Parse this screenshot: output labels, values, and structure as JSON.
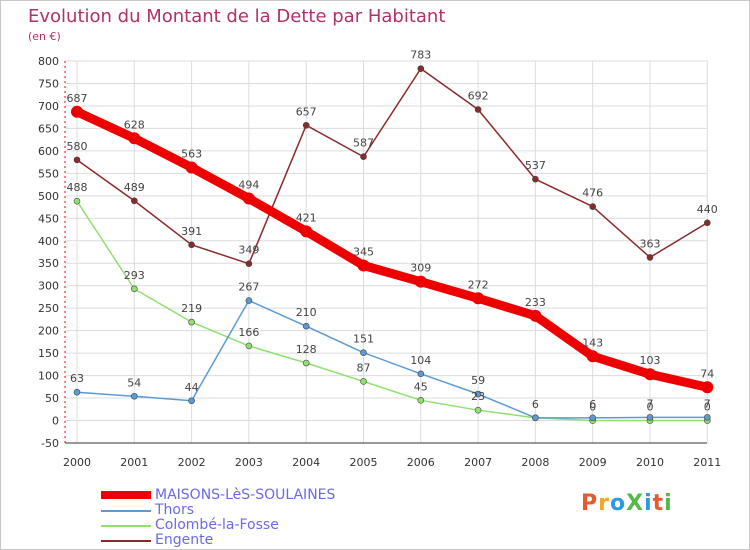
{
  "title": "Evolution du Montant de la Dette par Habitant",
  "subtitle": "(en €)",
  "logo_text": "ProXiti",
  "chart_data": {
    "type": "line",
    "title": "Evolution du Montant de la Dette par Habitant",
    "ylabel": "(en €)",
    "x": [
      "2000",
      "2001",
      "2002",
      "2003",
      "2004",
      "2005",
      "2006",
      "2007",
      "2008",
      "2009",
      "2010",
      "2011"
    ],
    "ylim": [
      -50,
      800
    ],
    "yticks": [
      -50,
      0,
      50,
      100,
      150,
      200,
      250,
      300,
      350,
      400,
      450,
      500,
      550,
      600,
      650,
      700,
      750,
      800
    ],
    "grid": true,
    "legend_position": "bottom-left",
    "series": [
      {
        "name": "MAISONS-LèS-SOULAINES",
        "color": "#ee0000",
        "width": "thick",
        "values": [
          687,
          628,
          563,
          494,
          421,
          345,
          309,
          272,
          233,
          143,
          103,
          74
        ],
        "labels": [
          "687",
          "628",
          "563",
          "494",
          "421",
          "345",
          "309",
          "272",
          "233",
          "143",
          "103",
          "74"
        ]
      },
      {
        "name": "Thors",
        "color": "#5b9bd5",
        "width": "thin",
        "values": [
          63,
          54,
          44,
          267,
          210,
          151,
          104,
          59,
          6,
          6,
          7,
          7
        ],
        "labels": [
          "63",
          "54",
          "44",
          "267",
          "210",
          "151",
          "104",
          "59",
          "6",
          "6",
          "7",
          "7"
        ]
      },
      {
        "name": "Colombé-la-Fosse",
        "color": "#90e070",
        "width": "thin",
        "values": [
          488,
          293,
          219,
          166,
          128,
          87,
          45,
          23,
          6,
          0,
          0,
          0
        ],
        "labels": [
          "488",
          "293",
          "219",
          "166",
          "128",
          "87",
          "45",
          "23",
          "",
          "0",
          "0",
          "0"
        ]
      },
      {
        "name": "Engente",
        "color": "#8b2a2a",
        "width": "thin",
        "values": [
          580,
          489,
          391,
          349,
          657,
          587,
          783,
          692,
          537,
          476,
          363,
          440
        ],
        "labels": [
          "580",
          "489",
          "391",
          "349",
          "657",
          "587",
          "783",
          "692",
          "537",
          "476",
          "363",
          "440"
        ]
      }
    ]
  }
}
